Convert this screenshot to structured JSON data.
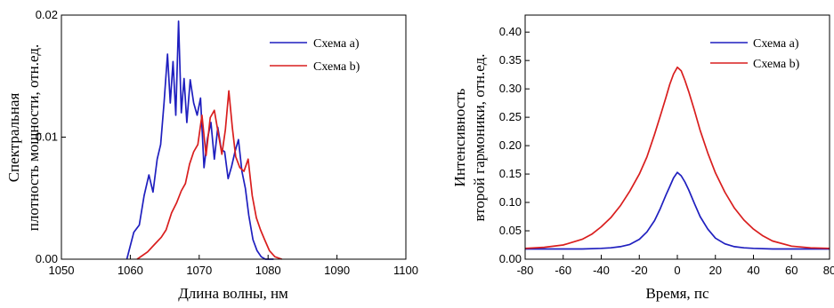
{
  "chart_data": [
    {
      "type": "line",
      "xlabel": "Длина волны, нм",
      "ylabel": [
        "Спектральная",
        "плотность мощности, отн.ед."
      ],
      "xlim": [
        1050,
        1100
      ],
      "ylim": [
        0,
        0.02
      ],
      "xticks": [
        "1050",
        "1060",
        "1070",
        "1080",
        "1090",
        "1100"
      ],
      "yticks": [
        "0.00",
        "0.01",
        "0.02"
      ],
      "legend": "top-right",
      "series": [
        {
          "name": "Схема a)",
          "color": "#1f1fbf",
          "x": [
            1059.5,
            1060.5,
            1061.3,
            1062.0,
            1062.7,
            1063.3,
            1063.9,
            1064.4,
            1064.9,
            1065.4,
            1065.8,
            1066.2,
            1066.6,
            1067.0,
            1067.4,
            1067.8,
            1068.2,
            1068.7,
            1069.2,
            1069.7,
            1070.2,
            1070.7,
            1071.2,
            1071.7,
            1072.2,
            1072.7,
            1073.2,
            1073.7,
            1074.2,
            1074.7,
            1075.2,
            1075.7,
            1076.2,
            1076.7,
            1077.2,
            1077.8,
            1078.4,
            1079.0,
            1079.6,
            1080.2,
            1080.8
          ],
          "y": [
            0.0,
            0.0022,
            0.0028,
            0.0052,
            0.0069,
            0.0055,
            0.0082,
            0.0094,
            0.0128,
            0.0168,
            0.0128,
            0.0162,
            0.0118,
            0.0195,
            0.012,
            0.0148,
            0.0112,
            0.0147,
            0.0128,
            0.0118,
            0.0132,
            0.0075,
            0.0099,
            0.0112,
            0.0082,
            0.0108,
            0.009,
            0.0088,
            0.0066,
            0.0076,
            0.0088,
            0.0098,
            0.0072,
            0.0058,
            0.0036,
            0.0016,
            0.0007,
            0.0002,
            0.0,
            0.0,
            0.0
          ]
        },
        {
          "name": "Схема b)",
          "color": "#d91e1e",
          "x": [
            1061.0,
            1062.5,
            1063.5,
            1064.5,
            1065.2,
            1066.0,
            1066.7,
            1067.4,
            1068.0,
            1068.6,
            1069.2,
            1069.8,
            1070.4,
            1071.0,
            1071.6,
            1072.2,
            1072.8,
            1073.3,
            1073.8,
            1074.3,
            1074.8,
            1075.3,
            1075.9,
            1076.5,
            1077.1,
            1077.7,
            1078.3,
            1078.9,
            1079.5,
            1080.2,
            1081.0,
            1082.0
          ],
          "y": [
            0.0,
            0.0006,
            0.0012,
            0.0018,
            0.0024,
            0.0038,
            0.0046,
            0.0056,
            0.0062,
            0.0078,
            0.0088,
            0.0094,
            0.0118,
            0.0085,
            0.0116,
            0.0122,
            0.0102,
            0.0086,
            0.0106,
            0.0138,
            0.0108,
            0.0084,
            0.0075,
            0.0072,
            0.0082,
            0.0052,
            0.0034,
            0.0024,
            0.0016,
            0.0007,
            0.0002,
            0.0
          ]
        }
      ]
    },
    {
      "type": "line",
      "xlabel": "Время, пс",
      "ylabel": [
        "Интенсивность",
        "второй гармоники, отн.ед."
      ],
      "xlim": [
        -80,
        80
      ],
      "ylim": [
        0.0,
        0.43
      ],
      "xticks": [
        "-80",
        "-60",
        "-40",
        "-20",
        "0",
        "20",
        "40",
        "60",
        "80"
      ],
      "yticks": [
        "0.00",
        "0.05",
        "0.10",
        "0.15",
        "0.20",
        "0.25",
        "0.30",
        "0.35",
        "0.40"
      ],
      "legend": "top-right",
      "series": [
        {
          "name": "Схема a)",
          "color": "#1f1fbf",
          "x": [
            -80,
            -70,
            -60,
            -50,
            -40,
            -35,
            -30,
            -25,
            -20,
            -16,
            -12,
            -9,
            -6,
            -4,
            -2,
            0,
            2,
            4,
            6,
            9,
            12,
            16,
            20,
            25,
            30,
            35,
            40,
            50,
            60,
            70,
            80
          ],
          "y": [
            0.018,
            0.018,
            0.018,
            0.018,
            0.019,
            0.02,
            0.022,
            0.026,
            0.035,
            0.048,
            0.068,
            0.089,
            0.113,
            0.128,
            0.143,
            0.153,
            0.147,
            0.136,
            0.122,
            0.098,
            0.075,
            0.053,
            0.037,
            0.027,
            0.022,
            0.02,
            0.019,
            0.018,
            0.018,
            0.018,
            0.018
          ]
        },
        {
          "name": "Схема b)",
          "color": "#d91e1e",
          "x": [
            -80,
            -70,
            -60,
            -50,
            -45,
            -40,
            -35,
            -30,
            -25,
            -20,
            -16,
            -12,
            -9,
            -6,
            -4,
            -2,
            0,
            2,
            4,
            6,
            9,
            12,
            16,
            20,
            25,
            30,
            35,
            40,
            45,
            50,
            60,
            70,
            80
          ],
          "y": [
            0.019,
            0.021,
            0.025,
            0.035,
            0.044,
            0.057,
            0.073,
            0.094,
            0.12,
            0.15,
            0.18,
            0.22,
            0.252,
            0.285,
            0.308,
            0.326,
            0.338,
            0.332,
            0.315,
            0.295,
            0.262,
            0.227,
            0.187,
            0.152,
            0.118,
            0.09,
            0.069,
            0.053,
            0.041,
            0.032,
            0.023,
            0.02,
            0.019
          ]
        }
      ]
    }
  ]
}
